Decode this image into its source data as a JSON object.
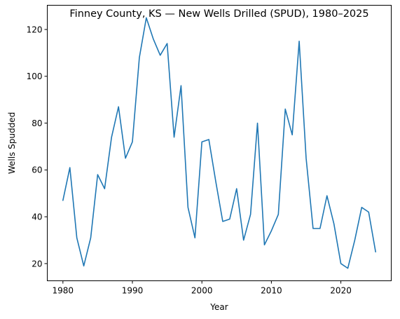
{
  "chart_data": {
    "type": "line",
    "title": "Finney County, KS — New Wells Drilled (SPUD), 1980–2025",
    "xlabel": "Year",
    "ylabel": "Wells Spudded",
    "xlim": [
      1977.75,
      2027.25
    ],
    "ylim": [
      12.65,
      130.35
    ],
    "xticks": [
      1980,
      1990,
      2000,
      2010,
      2020
    ],
    "yticks": [
      20,
      40,
      60,
      80,
      100,
      120
    ],
    "grid": false,
    "legend": "none",
    "line_color": "#1f77b4",
    "series": [
      {
        "x": [
          1980,
          1981,
          1982,
          1983,
          1984,
          1985,
          1986,
          1987,
          1988,
          1989,
          1990,
          1991,
          1992,
          1993,
          1994,
          1995,
          1996,
          1997,
          1998,
          1999,
          2000,
          2001,
          2002,
          2003,
          2004,
          2005,
          2006,
          2007,
          2008,
          2009,
          2010,
          2011,
          2012,
          2013,
          2014,
          2015,
          2016,
          2017,
          2018,
          2019,
          2020,
          2021,
          2022,
          2023,
          2024,
          2025
        ],
        "values": [
          47,
          61,
          31,
          19,
          31,
          58,
          52,
          74,
          87,
          65,
          72,
          108,
          125,
          116,
          109,
          114,
          74,
          96,
          44,
          31,
          72,
          73,
          55,
          38,
          39,
          52,
          30,
          41,
          80,
          28,
          34,
          41,
          86,
          75,
          115,
          65,
          35,
          35,
          49,
          37,
          20,
          18,
          30,
          44,
          42,
          25
        ]
      }
    ]
  }
}
